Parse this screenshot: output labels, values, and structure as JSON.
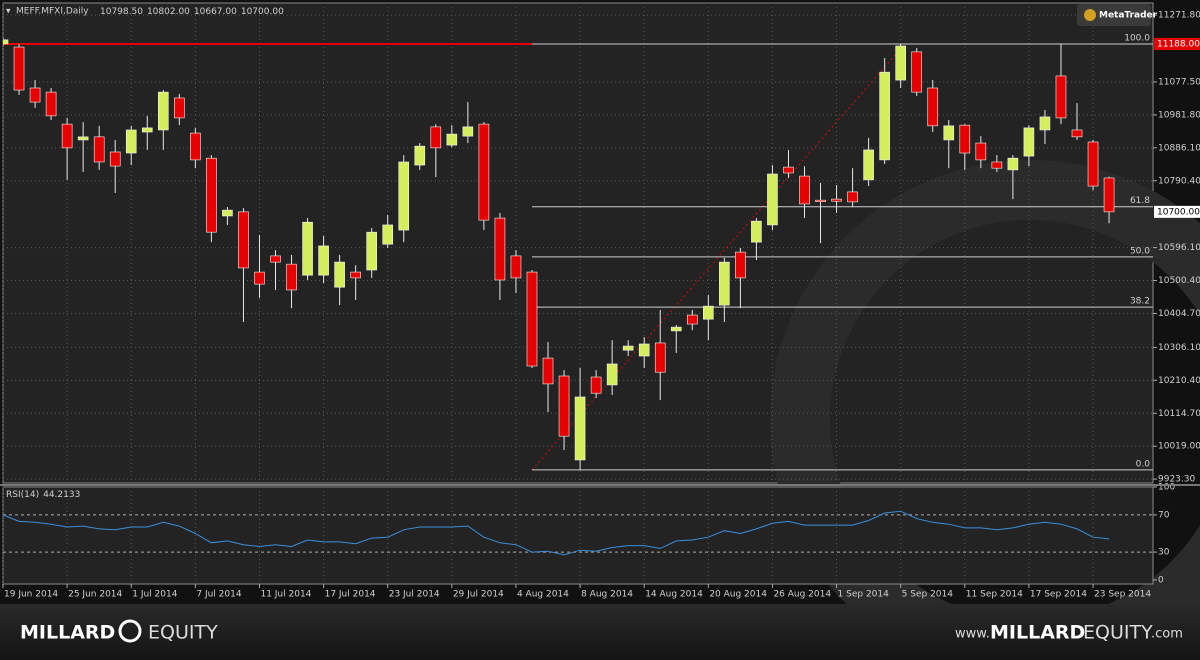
{
  "chart_data": {
    "type": "candlestick",
    "symbol": "MEFF.MFXI,Daily",
    "last_labels": [
      "10798.50",
      "10802.00",
      "10667.00",
      "10700.00"
    ],
    "platform": "MetaTrader",
    "categories": [
      "19 Jun 2014",
      null,
      null,
      null,
      "25 Jun 2014",
      null,
      null,
      null,
      "1 Jul 2014",
      null,
      null,
      null,
      "7 Jul 2014",
      null,
      null,
      null,
      "11 Jul 2014",
      null,
      null,
      null,
      "17 Jul 2014",
      null,
      null,
      null,
      "23 Jul 2014",
      null,
      null,
      null,
      "29 Jul 2014",
      null,
      null,
      null,
      "4 Aug 2014",
      null,
      null,
      null,
      "8 Aug 2014",
      null,
      null,
      null,
      "14 Aug 2014",
      null,
      null,
      null,
      "20 Aug 2014",
      null,
      null,
      null,
      "26 Aug 2014",
      null,
      null,
      null,
      "1 Sep 2014",
      null,
      null,
      null,
      "5 Sep 2014",
      null,
      null,
      null,
      "11 Sep 2014",
      null,
      null,
      null,
      "17 Sep 2014",
      null,
      null,
      null,
      "23 Sep 2014",
      null
    ],
    "open": [
      11188,
      11179,
      11060,
      11048,
      10955,
      10909,
      10918,
      10874,
      10871,
      10932,
      10938,
      11031,
      10929,
      10856,
      10688,
      10700,
      10525,
      10572,
      10548,
      10516,
      10516,
      10481,
      10525,
      10531,
      10606,
      10647,
      10836,
      10947,
      10894,
      10920,
      10955,
      10682,
      10572,
      10525,
      10275,
      10223,
      9979,
      10220,
      10197,
      10298,
      10281,
      10319,
      10354,
      10400,
      10388,
      10429,
      10583,
      10612,
      10662,
      10830,
      10804,
      10734,
      10737,
      10758,
      10793,
      10851,
      11083,
      11165,
      11060,
      10909,
      10952,
      10900,
      10845,
      10822,
      10862,
      10938,
      11095,
      10938,
      10903,
      10798.5
    ],
    "high": [
      11205,
      11188,
      11083,
      11060,
      10973,
      10961,
      10950,
      10909,
      10950,
      10979,
      11054,
      11043,
      10944,
      10865,
      10714,
      10711,
      10633,
      10589,
      10575,
      10682,
      10630,
      10575,
      10545,
      10653,
      10691,
      10865,
      10900,
      10955,
      10952,
      11019,
      10961,
      10697,
      10589,
      10531,
      10322,
      10240,
      10246,
      10240,
      10327,
      10327,
      10336,
      10415,
      10371,
      10415,
      10458,
      10566,
      10595,
      10682,
      10836,
      10880,
      10833,
      10784,
      10778,
      10827,
      10915,
      11147,
      11188,
      11176,
      11083,
      10967,
      10955,
      10920,
      10865,
      10865,
      10952,
      10996,
      11188,
      11016,
      10909,
      10802
    ],
    "low": [
      11182,
      11040,
      11002,
      10967,
      10793,
      10816,
      10822,
      10755,
      10836,
      10880,
      10880,
      10952,
      10827,
      10612,
      10662,
      10380,
      10450,
      10473,
      10420,
      10502,
      10493,
      10429,
      10444,
      10508,
      10595,
      10612,
      10822,
      10801,
      10888,
      10900,
      10647,
      10444,
      10464,
      10246,
      10118,
      10008,
      9950,
      10159,
      10168,
      10281,
      10246,
      10153,
      10290,
      10356,
      10327,
      10380,
      10420,
      10560,
      10647,
      10798,
      10682,
      10609,
      10697,
      10714,
      10775,
      10839,
      11060,
      11037,
      10932,
      10827,
      10822,
      10827,
      10816,
      10737,
      10833,
      10897,
      10955,
      10909,
      10763,
      10667
    ],
    "close": [
      11200,
      11054,
      11019,
      10979,
      10886,
      10918,
      10845,
      10833,
      10938,
      10944,
      11048,
      10973,
      10851,
      10641,
      10705,
      10537,
      10490,
      10554,
      10473,
      10670,
      10601,
      10554,
      10508,
      10641,
      10662,
      10845,
      10891,
      10886,
      10926,
      10947,
      10676,
      10502,
      10508,
      10252,
      10200,
      10048,
      10162,
      10173,
      10258,
      10310,
      10316,
      10234,
      10365,
      10374,
      10426,
      10554,
      10508,
      10673,
      10810,
      10813,
      10723,
      10731,
      10731,
      10729,
      10880,
      11106,
      11182,
      11048,
      10950,
      10950,
      10871,
      10851,
      10827,
      10856,
      10944,
      10976,
      10973,
      10918,
      10775,
      10700
    ],
    "up_color": "#d4ee5c",
    "down_color": "#e60000",
    "wick_color": "#e8e8e8",
    "ylim": [
      9912,
      11307
    ],
    "yticks": [
      {
        "value": 11271.8,
        "label": "11271.80"
      },
      {
        "value": 11077.5,
        "label": "11077.50"
      },
      {
        "value": 10981.8,
        "label": "10981.80"
      },
      {
        "value": 10886.1,
        "label": "10886.10"
      },
      {
        "value": 10790.4,
        "label": "10790.40"
      },
      {
        "value": 10596.1,
        "label": "10596.10"
      },
      {
        "value": 10500.4,
        "label": "10500.40"
      },
      {
        "value": 10404.7,
        "label": "10404.70"
      },
      {
        "value": 10306.1,
        "label": "10306.10"
      },
      {
        "value": 10210.4,
        "label": "10210.40"
      },
      {
        "value": 10114.7,
        "label": "10114.70"
      },
      {
        "value": 10019,
        "label": "10019.00"
      },
      {
        "value": 9923.3,
        "label": "9923.30"
      }
    ],
    "price_labels": [
      {
        "value": 11188,
        "label": "11188.00",
        "color": "#e60000"
      },
      {
        "value": 10700,
        "label": "10700.00",
        "color": "#ffffff"
      }
    ],
    "fib_levels": [
      {
        "value": 11188,
        "label": "100.0"
      },
      {
        "value": 10715,
        "label": "61.8"
      },
      {
        "value": 10569,
        "label": "50.0"
      },
      {
        "value": 10423,
        "label": "38.2"
      },
      {
        "value": 9950,
        "label": "0.0"
      }
    ],
    "grid": true,
    "rsi": {
      "name": "RSI(14)",
      "color": "#3a8fdc",
      "values": [
        70,
        63,
        62,
        60,
        57,
        58,
        55,
        54,
        57,
        57,
        62,
        58,
        50,
        40,
        42,
        38,
        36,
        38,
        36,
        43,
        41,
        41,
        39,
        45,
        46,
        54,
        57,
        57,
        57,
        58,
        46,
        40,
        38,
        30,
        31,
        27,
        32,
        31,
        35,
        37,
        37,
        34,
        42,
        43,
        46,
        53,
        50,
        55,
        61,
        63,
        59,
        59,
        59,
        59,
        64,
        72,
        74,
        66,
        62,
        60,
        56,
        56,
        54,
        56,
        60,
        62,
        60,
        55,
        46,
        44.2133
      ],
      "ylim": [
        0,
        100
      ],
      "yticks": [
        100,
        70,
        30,
        0
      ],
      "levels": [
        70,
        30
      ]
    }
  },
  "footer": {
    "brand": [
      "MILLARD",
      "EQUITY"
    ],
    "url": [
      "www.",
      "MILLARD",
      "EQUITY",
      ".com"
    ]
  }
}
